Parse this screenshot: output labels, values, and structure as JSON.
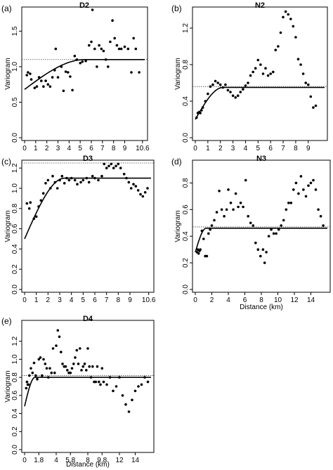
{
  "chart_data": [
    {
      "type": "scatter",
      "panel_label": "(a)",
      "title": "D2",
      "ylabel": "Variogram",
      "xlabel": "",
      "xlim": [
        0,
        10.8
      ],
      "ylim": [
        0,
        1.8
      ],
      "x_ticks": [
        0,
        1,
        2,
        3,
        4,
        5,
        6,
        7,
        8,
        9,
        10.6
      ],
      "x_tick_labels": [
        "0",
        "1",
        "2",
        "3",
        "4",
        "5",
        "6",
        "7",
        "8",
        "9",
        "10.6"
      ],
      "y_ticks": [
        0,
        0.5,
        1.0,
        1.5
      ],
      "y_tick_labels": [
        "0.0",
        "0.5",
        "1.0",
        "1.5"
      ],
      "sill": 1.1,
      "fit": {
        "nugget": 0.68,
        "sill": 1.1,
        "range": 5.4
      },
      "points": [
        [
          0.2,
          0.88
        ],
        [
          0.3,
          0.92
        ],
        [
          0.5,
          0.9
        ],
        [
          0.6,
          0.82
        ],
        [
          0.9,
          0.7
        ],
        [
          1.1,
          0.72
        ],
        [
          1.3,
          0.85
        ],
        [
          1.5,
          0.8
        ],
        [
          1.7,
          0.72
        ],
        [
          1.9,
          0.8
        ],
        [
          2.1,
          0.75
        ],
        [
          2.3,
          0.72
        ],
        [
          2.5,
          0.85
        ],
        [
          2.7,
          0.95
        ],
        [
          2.8,
          1.25
        ],
        [
          3.0,
          0.85
        ],
        [
          3.3,
          1.0
        ],
        [
          3.5,
          0.66
        ],
        [
          3.7,
          0.93
        ],
        [
          3.9,
          0.92
        ],
        [
          4.1,
          0.86
        ],
        [
          4.3,
          0.67
        ],
        [
          4.5,
          1.15
        ],
        [
          4.7,
          1.1
        ],
        [
          5.0,
          1.05
        ],
        [
          5.2,
          1.07
        ],
        [
          5.5,
          1.08
        ],
        [
          5.8,
          1.3
        ],
        [
          6.0,
          1.35
        ],
        [
          6.1,
          1.8
        ],
        [
          6.3,
          1.25
        ],
        [
          6.5,
          1.0
        ],
        [
          6.7,
          1.3
        ],
        [
          6.9,
          1.25
        ],
        [
          7.1,
          1.22
        ],
        [
          7.3,
          1.1
        ],
        [
          7.5,
          1.0
        ],
        [
          7.7,
          1.35
        ],
        [
          7.9,
          1.65
        ],
        [
          8.1,
          1.4
        ],
        [
          8.3,
          1.3
        ],
        [
          8.5,
          1.25
        ],
        [
          8.7,
          1.25
        ],
        [
          9.0,
          1.28
        ],
        [
          9.3,
          1.25
        ],
        [
          9.6,
          0.92
        ],
        [
          9.8,
          1.4
        ],
        [
          10.0,
          1.25
        ],
        [
          10.3,
          0.92
        ]
      ]
    },
    {
      "type": "scatter",
      "panel_label": "(b)",
      "title": "N2",
      "ylabel": "Variogram",
      "xlabel": "",
      "xlim": [
        0,
        10.3
      ],
      "ylim": [
        0,
        1.4
      ],
      "x_ticks": [
        0,
        1,
        2,
        3,
        4,
        5,
        6,
        7,
        8,
        9
      ],
      "x_tick_labels": [
        "0",
        "1",
        "2",
        "3",
        "4",
        "5",
        "6",
        "7",
        "8",
        "9"
      ],
      "y_ticks": [
        0,
        0.4,
        0.8,
        1.2
      ],
      "y_tick_labels": [
        "0.0",
        "0.4",
        "0.8",
        "1.2"
      ],
      "sill": 0.56,
      "fit": {
        "nugget": 0.2,
        "sill": 0.55,
        "range": 2.2
      },
      "points": [
        [
          0.1,
          0.22
        ],
        [
          0.2,
          0.27
        ],
        [
          0.3,
          0.28
        ],
        [
          0.4,
          0.27
        ],
        [
          0.5,
          0.3
        ],
        [
          0.6,
          0.33
        ],
        [
          0.8,
          0.4
        ],
        [
          1.0,
          0.48
        ],
        [
          1.2,
          0.56
        ],
        [
          1.4,
          0.58
        ],
        [
          1.6,
          0.62
        ],
        [
          1.8,
          0.6
        ],
        [
          2.0,
          0.58
        ],
        [
          2.2,
          0.55
        ],
        [
          2.4,
          0.58
        ],
        [
          2.6,
          0.52
        ],
        [
          2.8,
          0.5
        ],
        [
          3.0,
          0.46
        ],
        [
          3.2,
          0.44
        ],
        [
          3.4,
          0.46
        ],
        [
          3.6,
          0.5
        ],
        [
          3.8,
          0.53
        ],
        [
          4.0,
          0.57
        ],
        [
          4.2,
          0.6
        ],
        [
          4.4,
          0.68
        ],
        [
          4.6,
          0.72
        ],
        [
          4.8,
          0.76
        ],
        [
          5.0,
          0.85
        ],
        [
          5.2,
          0.8
        ],
        [
          5.4,
          0.7
        ],
        [
          5.6,
          0.76
        ],
        [
          5.8,
          0.68
        ],
        [
          6.0,
          0.7
        ],
        [
          6.2,
          0.72
        ],
        [
          6.4,
          0.96
        ],
        [
          6.6,
          1.0
        ],
        [
          6.8,
          1.15
        ],
        [
          7.0,
          1.32
        ],
        [
          7.2,
          1.38
        ],
        [
          7.4,
          1.35
        ],
        [
          7.6,
          1.3
        ],
        [
          7.8,
          1.22
        ],
        [
          8.0,
          1.1
        ],
        [
          8.2,
          0.86
        ],
        [
          8.4,
          0.8
        ],
        [
          8.6,
          0.7
        ],
        [
          8.8,
          0.6
        ],
        [
          9.0,
          0.58
        ],
        [
          9.2,
          0.45
        ],
        [
          9.4,
          0.33
        ],
        [
          9.6,
          0.35
        ]
      ]
    },
    {
      "type": "scatter",
      "panel_label": "(c)",
      "title": "D3",
      "ylabel": "Variogram",
      "xlabel": "",
      "xlim": [
        0,
        10.8
      ],
      "ylim": [
        0,
        1.25
      ],
      "x_ticks": [
        0,
        1,
        2,
        3,
        4,
        5,
        6,
        7,
        8,
        9,
        10.6
      ],
      "x_tick_labels": [
        "0",
        "1",
        "2",
        "3",
        "4",
        "5",
        "6",
        "7",
        "8",
        "9",
        "10.6"
      ],
      "y_ticks": [
        0,
        0.2,
        0.4,
        0.6,
        0.8,
        1.0,
        1.2
      ],
      "y_tick_labels": [
        "0.0",
        "0.2",
        "0.4",
        "0.6",
        "0.8",
        "1.0",
        "1.2"
      ],
      "sill": 1.25,
      "fit": {
        "nugget": 0.5,
        "sill": 1.1,
        "range": 3.4
      },
      "points": [
        [
          0.2,
          0.85
        ],
        [
          0.4,
          0.8
        ],
        [
          0.5,
          0.86
        ],
        [
          0.8,
          0.7
        ],
        [
          1.0,
          0.72
        ],
        [
          1.2,
          0.82
        ],
        [
          1.4,
          0.88
        ],
        [
          1.6,
          0.95
        ],
        [
          1.8,
          1.05
        ],
        [
          2.0,
          1.08
        ],
        [
          2.2,
          1.0
        ],
        [
          2.4,
          1.12
        ],
        [
          2.6,
          1.06
        ],
        [
          2.8,
          1.0
        ],
        [
          3.0,
          1.08
        ],
        [
          3.2,
          1.12
        ],
        [
          3.4,
          1.05
        ],
        [
          3.6,
          1.1
        ],
        [
          3.8,
          1.08
        ],
        [
          4.0,
          1.1
        ],
        [
          4.3,
          1.08
        ],
        [
          4.5,
          1.04
        ],
        [
          4.8,
          1.06
        ],
        [
          5.0,
          1.08
        ],
        [
          5.3,
          1.1
        ],
        [
          5.5,
          1.06
        ],
        [
          5.8,
          1.12
        ],
        [
          6.0,
          1.1
        ],
        [
          6.3,
          1.08
        ],
        [
          6.6,
          1.12
        ],
        [
          6.8,
          1.24
        ],
        [
          7.0,
          1.2
        ],
        [
          7.2,
          1.22
        ],
        [
          7.4,
          1.24
        ],
        [
          7.6,
          1.2
        ],
        [
          7.8,
          1.22
        ],
        [
          8.0,
          1.24
        ],
        [
          8.2,
          1.2
        ],
        [
          8.5,
          1.14
        ],
        [
          8.7,
          1.1
        ],
        [
          8.9,
          1.06
        ],
        [
          9.1,
          1.0
        ],
        [
          9.3,
          1.04
        ],
        [
          9.5,
          1.02
        ],
        [
          9.7,
          0.98
        ],
        [
          9.9,
          0.94
        ],
        [
          10.1,
          0.92
        ],
        [
          10.3,
          0.96
        ],
        [
          10.5,
          1.0
        ]
      ]
    },
    {
      "type": "scatter",
      "panel_label": "(d)",
      "title": "N3",
      "ylabel": "Variogram",
      "xlabel": "Distance (km)",
      "xlim": [
        0,
        16
      ],
      "ylim": [
        0,
        0.95
      ],
      "x_ticks": [
        0,
        2,
        4,
        6,
        8,
        10,
        12,
        14
      ],
      "x_tick_labels": [
        "0",
        "2",
        "4",
        "6",
        "8",
        "10",
        "12",
        "14"
      ],
      "y_ticks": [
        0,
        0.2,
        0.4,
        0.6,
        0.8
      ],
      "y_tick_labels": [
        "0.0",
        "0.2",
        "0.4",
        "0.6",
        "0.8"
      ],
      "sill": 0.47,
      "fit": {
        "nugget": 0.28,
        "sill": 0.46,
        "range": 1.3
      },
      "points": [
        [
          0.2,
          0.28
        ],
        [
          0.3,
          0.3
        ],
        [
          0.4,
          0.27
        ],
        [
          0.5,
          0.29
        ],
        [
          0.6,
          0.3
        ],
        [
          0.8,
          0.44
        ],
        [
          1.0,
          0.38
        ],
        [
          1.2,
          0.25
        ],
        [
          1.4,
          0.25
        ],
        [
          1.6,
          0.42
        ],
        [
          1.8,
          0.45
        ],
        [
          2.0,
          0.48
        ],
        [
          2.3,
          0.52
        ],
        [
          2.6,
          0.58
        ],
        [
          2.9,
          0.74
        ],
        [
          3.2,
          0.6
        ],
        [
          3.5,
          0.55
        ],
        [
          3.8,
          0.6
        ],
        [
          4.0,
          0.75
        ],
        [
          4.3,
          0.65
        ],
        [
          4.6,
          0.6
        ],
        [
          4.9,
          0.72
        ],
        [
          5.2,
          0.62
        ],
        [
          5.5,
          0.65
        ],
        [
          5.8,
          0.62
        ],
        [
          6.1,
          0.82
        ],
        [
          6.4,
          0.55
        ],
        [
          6.7,
          0.5
        ],
        [
          7.0,
          0.48
        ],
        [
          7.3,
          0.35
        ],
        [
          7.6,
          0.3
        ],
        [
          7.9,
          0.25
        ],
        [
          8.2,
          0.3
        ],
        [
          8.4,
          0.2
        ],
        [
          8.6,
          0.28
        ],
        [
          8.9,
          0.4
        ],
        [
          9.2,
          0.45
        ],
        [
          9.5,
          0.42
        ],
        [
          9.8,
          0.42
        ],
        [
          10.1,
          0.45
        ],
        [
          10.4,
          0.48
        ],
        [
          10.7,
          0.52
        ],
        [
          11.0,
          0.6
        ],
        [
          11.3,
          0.65
        ],
        [
          11.6,
          0.65
        ],
        [
          11.9,
          0.75
        ],
        [
          12.2,
          0.8
        ],
        [
          12.5,
          0.72
        ],
        [
          12.8,
          0.85
        ],
        [
          13.1,
          0.75
        ],
        [
          13.4,
          0.7
        ],
        [
          13.7,
          0.78
        ],
        [
          14.0,
          0.8
        ],
        [
          14.3,
          0.82
        ],
        [
          14.6,
          0.75
        ],
        [
          14.9,
          0.6
        ],
        [
          15.2,
          0.55
        ],
        [
          15.5,
          0.48
        ]
      ]
    },
    {
      "type": "scatter",
      "panel_label": "(e)",
      "title": "D4",
      "ylabel": "Variogram",
      "xlabel": "Distance (km)",
      "xlim": [
        0,
        16
      ],
      "ylim": [
        0,
        1.4
      ],
      "x_ticks": [
        0,
        1.8,
        4,
        5.8,
        8,
        9.8,
        12,
        14
      ],
      "x_tick_labels": [
        "0",
        "1.8",
        "4",
        "5.8",
        "8",
        "9.8",
        "12",
        "14"
      ],
      "y_ticks": [
        0,
        0.2,
        0.4,
        0.6,
        0.8,
        1.0,
        1.2
      ],
      "y_tick_labels": [
        "0.0",
        "0.2",
        "0.4",
        "0.6",
        "0.8",
        "1.0",
        "1.2"
      ],
      "sill": 0.82,
      "fit": {
        "nugget": 0.48,
        "sill": 0.8,
        "range": 1.3
      },
      "points": [
        [
          0.2,
          0.68
        ],
        [
          0.3,
          0.75
        ],
        [
          0.4,
          0.72
        ],
        [
          0.5,
          0.72
        ],
        [
          0.6,
          0.82
        ],
        [
          0.8,
          0.9
        ],
        [
          1.0,
          0.85
        ],
        [
          1.2,
          0.96
        ],
        [
          1.4,
          0.82
        ],
        [
          1.6,
          0.78
        ],
        [
          1.8,
          1.0
        ],
        [
          2.0,
          1.02
        ],
        [
          2.2,
          0.82
        ],
        [
          2.4,
          1.0
        ],
        [
          2.6,
          0.95
        ],
        [
          2.8,
          0.9
        ],
        [
          3.0,
          0.8
        ],
        [
          3.2,
          0.9
        ],
        [
          3.4,
          0.85
        ],
        [
          3.6,
          1.12
        ],
        [
          3.8,
          0.85
        ],
        [
          4.0,
          1.15
        ],
        [
          4.2,
          1.32
        ],
        [
          4.4,
          1.25
        ],
        [
          4.6,
          1.08
        ],
        [
          4.8,
          0.95
        ],
        [
          5.0,
          0.92
        ],
        [
          5.2,
          0.92
        ],
        [
          5.4,
          0.88
        ],
        [
          5.6,
          0.85
        ],
        [
          5.8,
          0.85
        ],
        [
          6.0,
          0.9
        ],
        [
          6.2,
          0.95
        ],
        [
          6.4,
          1.02
        ],
        [
          6.6,
          1.1
        ],
        [
          6.8,
          0.95
        ],
        [
          7.0,
          1.12
        ],
        [
          7.2,
          0.88
        ],
        [
          7.4,
          0.92
        ],
        [
          7.6,
          0.95
        ],
        [
          7.8,
          0.88
        ],
        [
          8.0,
          1.12
        ],
        [
          8.2,
          0.92
        ],
        [
          8.4,
          0.8
        ],
        [
          8.6,
          0.92
        ],
        [
          8.8,
          0.75
        ],
        [
          9.0,
          0.75
        ],
        [
          9.2,
          0.92
        ],
        [
          9.4,
          0.75
        ],
        [
          9.6,
          0.72
        ],
        [
          9.8,
          0.9
        ],
        [
          10.0,
          0.75
        ],
        [
          10.4,
          0.72
        ],
        [
          10.8,
          0.8
        ],
        [
          11.2,
          0.65
        ],
        [
          11.6,
          0.7
        ],
        [
          12.0,
          0.8
        ],
        [
          12.4,
          0.6
        ],
        [
          12.8,
          0.5
        ],
        [
          13.2,
          0.42
        ],
        [
          13.6,
          0.55
        ],
        [
          14.0,
          0.65
        ],
        [
          14.4,
          0.7
        ],
        [
          14.8,
          0.72
        ],
        [
          15.2,
          0.8
        ],
        [
          15.6,
          0.75
        ]
      ]
    }
  ]
}
